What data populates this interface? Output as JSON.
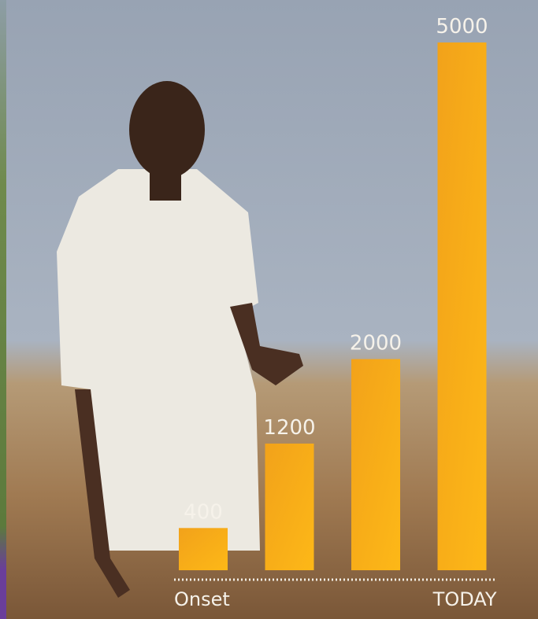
{
  "chart_data": {
    "type": "bar",
    "categories": [
      "Onset",
      null,
      null,
      "TODAY"
    ],
    "values": [
      400,
      1200,
      2000,
      5000
    ],
    "color": "#f7aa18"
  }
}
